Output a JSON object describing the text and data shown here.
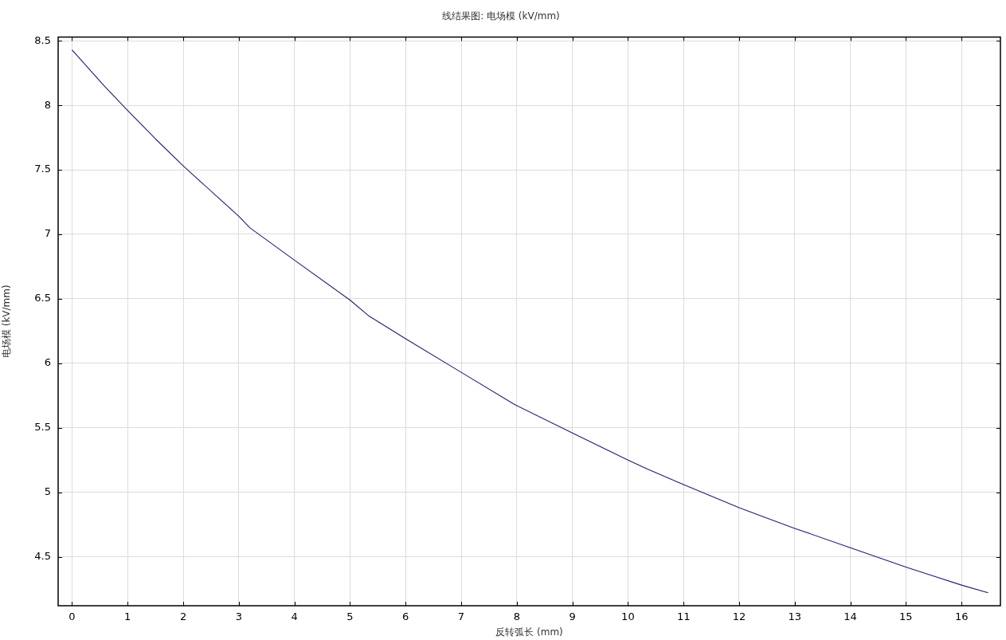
{
  "chart_data": {
    "type": "line",
    "title": "线结果图: 电场模 (kV/mm)",
    "xlabel": "反转弧长 (mm)",
    "ylabel": "电场模 (kV/mm)",
    "x": [
      0,
      0.58,
      1,
      1.5,
      2,
      3,
      3.2,
      4,
      5,
      5.33,
      6,
      7,
      7.96,
      9,
      10,
      10.35,
      11,
      12,
      12.43,
      13,
      14,
      15,
      15.43,
      16,
      16.48
    ],
    "series": [
      {
        "color": "#1f1f6b",
        "values": [
          8.43,
          8.15,
          7.96,
          7.74,
          7.53,
          7.14,
          7.05,
          6.8,
          6.49,
          6.37,
          6.19,
          5.93,
          5.68,
          5.46,
          5.25,
          5.18,
          5.06,
          4.88,
          4.81,
          4.72,
          4.57,
          4.42,
          4.36,
          4.28,
          4.22
        ]
      }
    ],
    "xlim": [
      -0.25,
      16.7
    ],
    "ylim": [
      4.12,
      8.53
    ],
    "xticks": [
      0,
      1,
      2,
      3,
      4,
      5,
      6,
      7,
      8,
      9,
      10,
      11,
      12,
      13,
      14,
      15,
      16
    ],
    "yticks": [
      4.5,
      5,
      5.5,
      6,
      6.5,
      7,
      7.5,
      8,
      8.5
    ],
    "grid": true,
    "legend": false
  }
}
